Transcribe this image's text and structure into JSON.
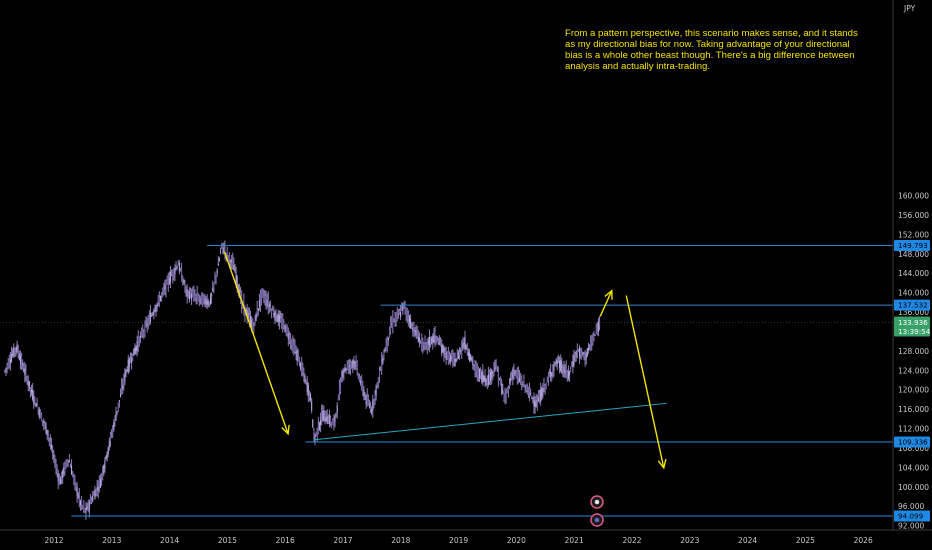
{
  "chart_data": {
    "type": "candlestick",
    "currency_label": "JPY",
    "annotation": "From a pattern perspective, this scenario makes sense, and it stands as my directional bias for now. Taking advantage of your directional bias is a whole other beast though. There's a big difference between analysis and actually intra-trading.",
    "ylim": [
      90,
      162
    ],
    "xlim": [
      2011.15,
      2026.85
    ],
    "y_ticks": [
      "92.000",
      "96.000",
      "100.000",
      "104.000",
      "108.000",
      "112.000",
      "116.000",
      "120.000",
      "124.000",
      "128.000",
      "132.000",
      "136.000",
      "140.000",
      "144.000",
      "148.000",
      "152.000",
      "156.000",
      "160.000"
    ],
    "x_ticks": [
      "2012",
      "2013",
      "2014",
      "2015",
      "2016",
      "2017",
      "2018",
      "2019",
      "2020",
      "2021",
      "2022",
      "2023",
      "2024",
      "2025",
      "2026"
    ],
    "price_path": [
      [
        2011.15,
        124
      ],
      [
        2011.35,
        129
      ],
      [
        2011.6,
        120
      ],
      [
        2011.9,
        111
      ],
      [
        2012.1,
        101
      ],
      [
        2012.25,
        106
      ],
      [
        2012.45,
        97
      ],
      [
        2012.55,
        95
      ],
      [
        2012.8,
        101
      ],
      [
        2013.0,
        111
      ],
      [
        2013.25,
        124
      ],
      [
        2013.5,
        131
      ],
      [
        2013.8,
        138
      ],
      [
        2014.0,
        143
      ],
      [
        2014.15,
        146
      ],
      [
        2014.3,
        140
      ],
      [
        2014.5,
        139
      ],
      [
        2014.7,
        138
      ],
      [
        2014.85,
        146
      ],
      [
        2014.9,
        149.8
      ],
      [
        2015.1,
        146
      ],
      [
        2015.25,
        138
      ],
      [
        2015.45,
        133
      ],
      [
        2015.6,
        140
      ],
      [
        2015.8,
        136
      ],
      [
        2016.0,
        133
      ],
      [
        2016.25,
        126
      ],
      [
        2016.45,
        118
      ],
      [
        2016.5,
        109.8
      ],
      [
        2016.65,
        115
      ],
      [
        2016.85,
        113
      ],
      [
        2017.0,
        124
      ],
      [
        2017.2,
        126
      ],
      [
        2017.4,
        118
      ],
      [
        2017.5,
        116
      ],
      [
        2017.7,
        127
      ],
      [
        2017.85,
        134
      ],
      [
        2018.0,
        136
      ],
      [
        2018.05,
        137.5
      ],
      [
        2018.2,
        133
      ],
      [
        2018.4,
        129
      ],
      [
        2018.6,
        131
      ],
      [
        2018.8,
        127
      ],
      [
        2018.95,
        126
      ],
      [
        2019.1,
        130
      ],
      [
        2019.3,
        124
      ],
      [
        2019.5,
        122
      ],
      [
        2019.65,
        125
      ],
      [
        2019.8,
        118
      ],
      [
        2019.95,
        124
      ],
      [
        2020.2,
        120
      ],
      [
        2020.35,
        117
      ],
      [
        2020.5,
        121
      ],
      [
        2020.7,
        126
      ],
      [
        2020.9,
        123
      ],
      [
        2021.05,
        128
      ],
      [
        2021.2,
        127
      ],
      [
        2021.35,
        131
      ],
      [
        2021.45,
        133.9
      ]
    ],
    "current_price": "133.936",
    "countdown": "13:39:54",
    "horizontal_levels": [
      {
        "value": 149.793,
        "label": "149.793",
        "x_start": 2014.65
      },
      {
        "value": 137.532,
        "label": "137.532",
        "x_start": 2017.65
      },
      {
        "value": 109.336,
        "label": "109.336",
        "x_start": 2016.35
      },
      {
        "value": 94.099,
        "label": "94.099",
        "x_start": 2012.3
      }
    ],
    "trendline": {
      "from": [
        2016.5,
        109.8
      ],
      "to": [
        2022.6,
        117.3
      ]
    },
    "projection_arrows": [
      {
        "from": [
          2014.95,
          148.5
        ],
        "to": [
          2016.05,
          111.0
        ]
      },
      {
        "from": [
          2021.45,
          135.2
        ],
        "to": [
          2021.65,
          140.5
        ]
      },
      {
        "from": [
          2021.9,
          139.5
        ],
        "to": [
          2022.55,
          104.0
        ]
      }
    ],
    "colors": {
      "background": "#000000",
      "candles": "#8f7fb8",
      "levels": "#2f86d6",
      "trendline": "#2aa7c4",
      "arrows": "#f5e300",
      "label_bg": "#1e88e5",
      "current_bg": "#38a169"
    }
  }
}
